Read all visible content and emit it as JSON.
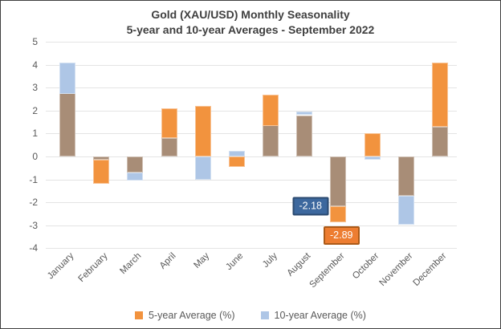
{
  "title": {
    "line1": "Gold (XAU/USD) Monthly Seasonality",
    "line2": "5-year and 10-year Averages - September 2022"
  },
  "chart_data": {
    "type": "bar",
    "subtype": "overlapped-bars",
    "categories": [
      "January",
      "February",
      "March",
      "April",
      "May",
      "June",
      "July",
      "August",
      "September",
      "October",
      "November",
      "December"
    ],
    "series": [
      {
        "name": "5-year Average (%)",
        "color": "#F2933E",
        "values": [
          2.75,
          -1.2,
          -0.7,
          2.1,
          2.2,
          -0.45,
          2.7,
          1.8,
          -2.89,
          1.0,
          -1.7,
          4.1
        ]
      },
      {
        "name": "10-year Average (%)",
        "color": "#AEC6E6",
        "values": [
          4.1,
          -0.15,
          -1.05,
          0.8,
          -1.0,
          0.25,
          1.35,
          1.95,
          -2.18,
          -0.15,
          -2.95,
          1.3
        ]
      }
    ],
    "overlap_color": "#A88D77",
    "ylim": [
      -4,
      5
    ],
    "yticks": [
      5,
      4,
      3,
      2,
      1,
      0,
      -1,
      -2,
      -3,
      -4
    ],
    "grid": true,
    "legend_position": "bottom",
    "annotations": [
      {
        "text": "-2.18",
        "month": "September",
        "series": "10-year Average (%)",
        "fill": "#3D689E",
        "border": "#2B4A70"
      },
      {
        "text": "-2.89",
        "month": "September",
        "series": "5-year Average (%)",
        "fill": "#ED7D31",
        "border": "#AC5A17"
      }
    ]
  },
  "legend": {
    "items": [
      {
        "label": "5-year Average (%)"
      },
      {
        "label": "10-year Average (%)"
      }
    ]
  }
}
